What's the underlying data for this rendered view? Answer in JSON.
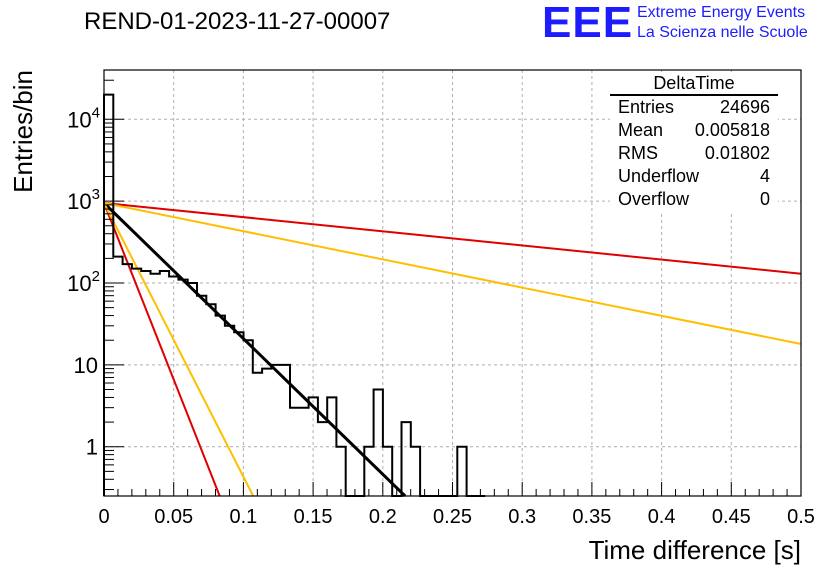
{
  "header": {
    "title": "REND-01-2023-11-27-00007",
    "logo_mark": "EEE",
    "logo_line1": "Extreme Energy Events",
    "logo_line2": "La Scienza nelle Scuole"
  },
  "stats": {
    "title": "DeltaTime",
    "rows": [
      {
        "label": "Entries",
        "value": "24696"
      },
      {
        "label": "Mean",
        "value": "0.005818"
      },
      {
        "label": "RMS",
        "value": "0.01802"
      },
      {
        "label": "Underflow",
        "value": "4"
      },
      {
        "label": "Overflow",
        "value": "0"
      }
    ]
  },
  "colors": {
    "histogram": "#000000",
    "fit": "#000000",
    "red_line": "#e00000",
    "orange_line": "#ffbf00",
    "grid": "#b0b0b0",
    "brand": "#1c1cff"
  },
  "chart_data": {
    "type": "line",
    "xlabel": "Time difference [s]",
    "ylabel": "Entries/bin",
    "xlim": [
      0,
      0.5
    ],
    "ylim": [
      0.25,
      40000
    ],
    "yscale": "log",
    "grid": true,
    "xticks": [
      "0",
      "0.05",
      "0.1",
      "0.15",
      "0.2",
      "0.25",
      "0.3",
      "0.35",
      "0.4",
      "0.45",
      "0.5"
    ],
    "yticks": [
      {
        "value": 1,
        "base": "1",
        "exp": ""
      },
      {
        "value": 10,
        "base": "10",
        "exp": ""
      },
      {
        "value": 100,
        "base": "10",
        "exp": "2"
      },
      {
        "value": 1000,
        "base": "10",
        "exp": "3"
      },
      {
        "value": 10000,
        "base": "10",
        "exp": "4"
      }
    ],
    "histogram": {
      "bin_width": 0.00667,
      "bins_from": 0,
      "values": [
        20000,
        210,
        170,
        150,
        140,
        130,
        140,
        120,
        110,
        100,
        70,
        55,
        40,
        30,
        25,
        20,
        8,
        9,
        10,
        10,
        3,
        3,
        4,
        2,
        4,
        1,
        0,
        0,
        1,
        5,
        1,
        0,
        2,
        1,
        0,
        0,
        0,
        0,
        1,
        0,
        0
      ]
    },
    "series": [
      {
        "color": "#000000",
        "points": [
          [
            0,
            950
          ],
          [
            0.216,
            0.25
          ]
        ]
      },
      {
        "color": "#e00000",
        "points": [
          [
            0,
            950
          ],
          [
            0.5,
            130
          ]
        ]
      },
      {
        "color": "#e00000",
        "points": [
          [
            0,
            950
          ],
          [
            0.083,
            0.25
          ]
        ]
      },
      {
        "color": "#ffbf00",
        "points": [
          [
            0,
            950
          ],
          [
            0.5,
            18
          ]
        ]
      },
      {
        "color": "#ffbf00",
        "points": [
          [
            0,
            950
          ],
          [
            0.107,
            0.25
          ]
        ]
      }
    ]
  }
}
